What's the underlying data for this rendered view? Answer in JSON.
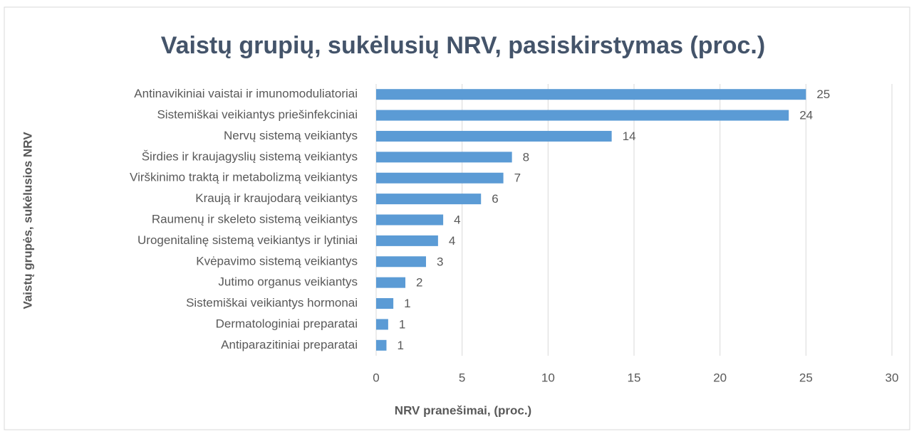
{
  "chart_data": {
    "type": "barh",
    "title": "Vaistų grupių, sukėlusių NRV, pasiskirstymas (proc.)",
    "x_label": "NRV pranešimai, (proc.)",
    "y_label": "Vaistų grupės, sukėlusios NRV",
    "categories": [
      "Antinavikiniai vaistai ir imunomoduliatoriai",
      "Sistemiškai veikiantys priešinfekciniai",
      "Nervų sistemą veikiantys",
      "Širdies ir kraujagyslių sistemą veikiantys",
      "Virškinimo traktą ir metabolizmą veikiantys",
      "Kraują ir kraujodarą veikiantys",
      "Raumenų ir skeleto sistemą veikiantys",
      "Urogenitalinę sistemą veikiantys ir lytiniai",
      "Kvėpavimo sistemą veikiantys",
      "Jutimo organus veikiantys",
      "Sistemiškai veikiantys hormonai",
      "Dermatologiniai preparatai",
      "Antiparazitiniai preparatai"
    ],
    "values": [
      25.0,
      24.0,
      13.7,
      7.9,
      7.4,
      6.1,
      3.9,
      3.6,
      2.9,
      1.7,
      1.0,
      0.7,
      0.6
    ],
    "value_labels": [
      "25",
      "24",
      "14",
      "8",
      "7",
      "6",
      "4",
      "4",
      "3",
      "2",
      "1",
      "1",
      "1"
    ],
    "color": "#5b9bd5",
    "xlim": [
      0,
      30
    ],
    "xticks": [
      0,
      5,
      10,
      15,
      20,
      25,
      30
    ],
    "grid": true
  }
}
